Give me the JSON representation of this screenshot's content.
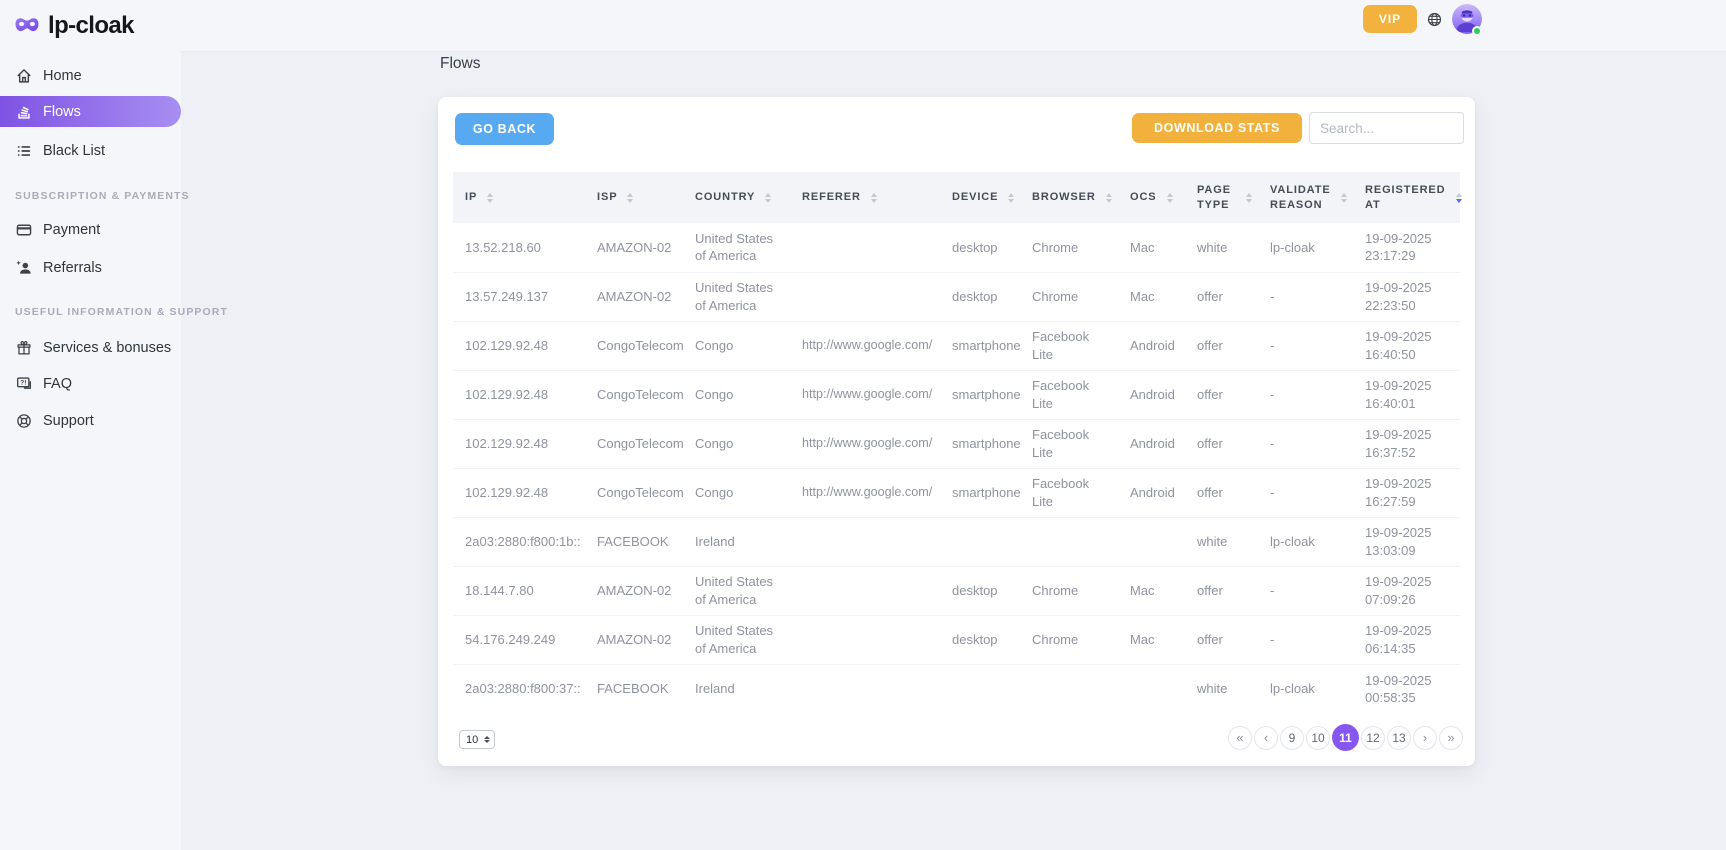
{
  "brand": {
    "name": "lp-cloak",
    "logo_icon": "mask-icon"
  },
  "topbar": {
    "vip": "VIP",
    "language_icon": "globe-icon",
    "avatar_icon": "user-avatar",
    "online_status": "online"
  },
  "sidebar": {
    "menu": [
      {
        "label": "Home",
        "icon": "home-icon",
        "active": false
      },
      {
        "label": "Flows",
        "icon": "flows-icon",
        "active": true
      },
      {
        "label": "Black List",
        "icon": "blacklist-icon",
        "active": false
      }
    ],
    "sections": [
      {
        "title": "Subscription & payments",
        "items": [
          {
            "label": "Payment",
            "icon": "credit-card-icon"
          },
          {
            "label": "Referrals",
            "icon": "referrals-icon"
          }
        ]
      },
      {
        "title": "Useful information & support",
        "items": [
          {
            "label": "Services & bonuses",
            "icon": "gift-icon"
          },
          {
            "label": "FAQ",
            "icon": "faq-icon"
          },
          {
            "label": "Support",
            "icon": "support-icon"
          }
        ]
      }
    ]
  },
  "page": {
    "title": "Flows"
  },
  "toolbar": {
    "go_back": "GO BACK",
    "download_stats": "DOWNLOAD STATS",
    "search_placeholder": "Search..."
  },
  "table": {
    "columns": [
      {
        "label": "IP",
        "sort": "neutral"
      },
      {
        "label": "ISP",
        "sort": "neutral"
      },
      {
        "label": "COUNTRY",
        "sort": "neutral"
      },
      {
        "label": "REFERER",
        "sort": "neutral"
      },
      {
        "label": "DEVICE",
        "sort": "neutral"
      },
      {
        "label": "BROWSER",
        "sort": "neutral"
      },
      {
        "label": "OCS",
        "sort": "neutral"
      },
      {
        "label": "PAGE TYPE",
        "sort": "neutral"
      },
      {
        "label": "VALIDATE REASON",
        "sort": "neutral"
      },
      {
        "label": "REGISTERED AT",
        "sort": "desc"
      }
    ],
    "rows": [
      {
        "ip": "13.52.218.60",
        "isp": "AMAZON-02",
        "country": "United States of America",
        "referer": "",
        "device": "desktop",
        "browser": "Chrome",
        "ocs": "Mac",
        "page_type": "white",
        "validate_reason": "lp-cloak",
        "registered_date": "19-09-2025",
        "registered_time": "23:17:29"
      },
      {
        "ip": "13.57.249.137",
        "isp": "AMAZON-02",
        "country": "United States of America",
        "referer": "",
        "device": "desktop",
        "browser": "Chrome",
        "ocs": "Mac",
        "page_type": "offer",
        "validate_reason": "-",
        "registered_date": "19-09-2025",
        "registered_time": "22:23:50"
      },
      {
        "ip": "102.129.92.48",
        "isp": "CongoTelecom",
        "country": "Congo",
        "referer": "http://www.google.com/",
        "device": "smartphone",
        "browser": "Facebook Lite",
        "ocs": "Android",
        "page_type": "offer",
        "validate_reason": "-",
        "registered_date": "19-09-2025",
        "registered_time": "16:40:50"
      },
      {
        "ip": "102.129.92.48",
        "isp": "CongoTelecom",
        "country": "Congo",
        "referer": "http://www.google.com/",
        "device": "smartphone",
        "browser": "Facebook Lite",
        "ocs": "Android",
        "page_type": "offer",
        "validate_reason": "-",
        "registered_date": "19-09-2025",
        "registered_time": "16:40:01"
      },
      {
        "ip": "102.129.92.48",
        "isp": "CongoTelecom",
        "country": "Congo",
        "referer": "http://www.google.com/",
        "device": "smartphone",
        "browser": "Facebook Lite",
        "ocs": "Android",
        "page_type": "offer",
        "validate_reason": "-",
        "registered_date": "19-09-2025",
        "registered_time": "16:37:52"
      },
      {
        "ip": "102.129.92.48",
        "isp": "CongoTelecom",
        "country": "Congo",
        "referer": "http://www.google.com/",
        "device": "smartphone",
        "browser": "Facebook Lite",
        "ocs": "Android",
        "page_type": "offer",
        "validate_reason": "-",
        "registered_date": "19-09-2025",
        "registered_time": "16:27:59"
      },
      {
        "ip": "2a03:2880:f800:1b::",
        "isp": "FACEBOOK",
        "country": "Ireland",
        "referer": "",
        "device": "",
        "browser": "",
        "ocs": "",
        "page_type": "white",
        "validate_reason": "lp-cloak",
        "registered_date": "19-09-2025",
        "registered_time": "13:03:09"
      },
      {
        "ip": "18.144.7.80",
        "isp": "AMAZON-02",
        "country": "United States of America",
        "referer": "",
        "device": "desktop",
        "browser": "Chrome",
        "ocs": "Mac",
        "page_type": "offer",
        "validate_reason": "-",
        "registered_date": "19-09-2025",
        "registered_time": "07:09:26"
      },
      {
        "ip": "54.176.249.249",
        "isp": "AMAZON-02",
        "country": "United States of America",
        "referer": "",
        "device": "desktop",
        "browser": "Chrome",
        "ocs": "Mac",
        "page_type": "offer",
        "validate_reason": "-",
        "registered_date": "19-09-2025",
        "registered_time": "06:14:35"
      },
      {
        "ip": "2a03:2880:f800:37::",
        "isp": "FACEBOOK",
        "country": "Ireland",
        "referer": "",
        "device": "",
        "browser": "",
        "ocs": "",
        "page_type": "white",
        "validate_reason": "lp-cloak",
        "registered_date": "19-09-2025",
        "registered_time": "00:58:35"
      }
    ]
  },
  "pagination": {
    "page_size": "10",
    "first_icon": "«",
    "prev_icon": "‹",
    "next_icon": "›",
    "last_icon": "»",
    "pages": [
      "9",
      "10",
      "11",
      "12",
      "13"
    ],
    "active_page": "11"
  },
  "colors": {
    "accent_purple": "#8657ee",
    "active_menu_gradient": [
      "#7e53e3",
      "#a88ef2"
    ],
    "button_blue": "#57aaf2",
    "button_orange": "#f2b13c",
    "online_green": "#2ecc5b",
    "sort_active_blue": "#4d6df2"
  }
}
